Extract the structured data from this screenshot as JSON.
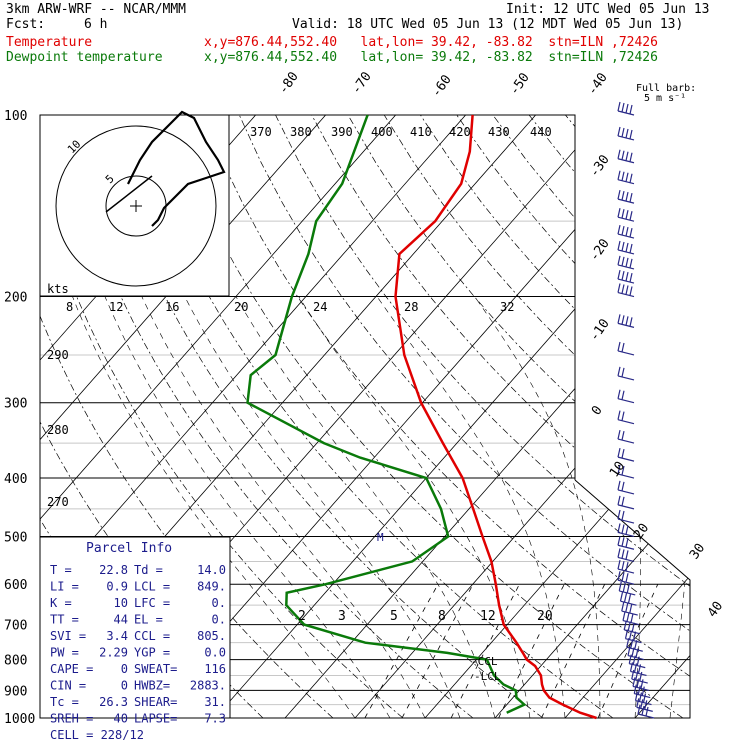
{
  "header": {
    "model": "3km ARW-WRF -- NCAR/MMM",
    "init": "Init: 12 UTC Wed 05 Jun 13",
    "fcst_label": "Fcst:",
    "fcst_value": "6 h",
    "valid": "Valid: 18 UTC Wed 05 Jun 13 (12 MDT Wed 05 Jun 13)",
    "temp_label": "Temperature",
    "dew_label": "Dewpoint temperature",
    "temp_loc": "x,y=876.44,552.40   lat,lon= 39.42, -83.82  stn=ILN ,72426",
    "dew_loc": "x,y=876.44,552.40   lat,lon= 39.42, -83.82  stn=ILN ,72426",
    "barb_note_1": "Full barb:",
    "barb_note_2": "5 m s⁻¹"
  },
  "parcel": {
    "title": "Parcel Info",
    "rows": [
      [
        "T  =",
        "22.8",
        "Td =",
        "14.0"
      ],
      [
        "LI =",
        "0.9",
        "LCL =",
        "849."
      ],
      [
        "K  =",
        "10",
        "LFC =",
        "0."
      ],
      [
        "TT =",
        "44",
        "EL  =",
        "0."
      ],
      [
        "SVI =",
        "3.4",
        "CCL =",
        "805."
      ],
      [
        "PW =",
        "2.29",
        "YGP =",
        "0.0"
      ],
      [
        "CAPE =",
        "0",
        "SWEAT=",
        "116"
      ],
      [
        "CIN =",
        "0",
        "HWBZ=",
        "2883."
      ],
      [
        "Tc =",
        "26.3",
        "SHEAR=",
        "31."
      ],
      [
        "SREH =",
        "40",
        "LAPSE=",
        "7.3"
      ]
    ],
    "cell": "CELL = 228/12"
  },
  "hodograph": {
    "units": "kts",
    "ring_labels": [
      "5",
      "10"
    ],
    "speed_ticks": [
      "8",
      "12",
      "16",
      "20",
      "24",
      "28",
      "32"
    ],
    "u": [
      1,
      2,
      3,
      5,
      7,
      10,
      13,
      12,
      10,
      9,
      8,
      6,
      4,
      1,
      -1,
      -3
    ],
    "v": [
      -2,
      -1,
      1,
      3,
      5,
      6,
      7,
      9,
      12,
      14,
      16,
      17,
      15,
      12,
      9,
      5
    ]
  },
  "chart_data": {
    "type": "line",
    "title": "Skew-T log-p sounding",
    "pressure_levels": [
      "100",
      "200",
      "300",
      "400",
      "500",
      "600",
      "700",
      "800",
      "900",
      "1000"
    ],
    "isotherm_labels": [
      "-80",
      "-70",
      "-60",
      "-50",
      "-40",
      "-30",
      "-20",
      "-10",
      "0",
      "10",
      "20",
      "30",
      "40"
    ],
    "theta_labels": [
      "370",
      "380",
      "390",
      "400",
      "410",
      "420",
      "430",
      "440"
    ],
    "theta_side_labels": [
      "290",
      "280",
      "270"
    ],
    "mixing_ratio_labels": [
      "2",
      "3",
      "5",
      "8",
      "12",
      "20"
    ],
    "lcl_label": "-LCL",
    "ccl_label": "-CCL",
    "series": [
      {
        "name": "Temperature",
        "color": "#e00000",
        "p": [
          1000,
          980,
          950,
          925,
          900,
          880,
          850,
          820,
          800,
          780,
          750,
          700,
          650,
          600,
          550,
          500,
          450,
          400,
          350,
          300,
          250,
          200,
          170,
          150,
          130,
          115,
          100
        ],
        "t": [
          24.5,
          21.5,
          18.0,
          15.2,
          13.5,
          12.5,
          11.2,
          9.2,
          7.2,
          5.8,
          3.6,
          -0.5,
          -3.6,
          -6.7,
          -10.2,
          -14.6,
          -19.4,
          -24.8,
          -32.0,
          -40.2,
          -48.6,
          -57.2,
          -62.0,
          -61.0,
          -62.0,
          -64.8,
          -69.0
        ]
      },
      {
        "name": "Dewpoint temperature",
        "color": "#0a7a0a",
        "p": [
          980,
          950,
          925,
          900,
          880,
          850,
          800,
          780,
          750,
          700,
          650,
          620,
          600,
          550,
          500,
          450,
          400,
          370,
          350,
          300,
          270,
          250,
          200,
          170,
          150,
          130,
          100
        ],
        "t": [
          11.0,
          12.5,
          10.5,
          9.5,
          7.0,
          4.5,
          1.5,
          -5.0,
          -18.0,
          -29.0,
          -34.0,
          -35.5,
          -31.0,
          -21.5,
          -19.5,
          -24.0,
          -30.0,
          -42.0,
          -49.0,
          -65.0,
          -68.0,
          -67.0,
          -72.0,
          -75.0,
          -78.0,
          -79.0,
          -84.0
        ]
      }
    ],
    "wind_barb_pressures": [
      1000,
      975,
      950,
      925,
      900,
      875,
      850,
      825,
      800,
      775,
      750,
      725,
      700,
      675,
      650,
      625,
      600,
      575,
      550,
      525,
      500,
      475,
      450,
      425,
      400,
      375,
      350,
      325,
      300,
      275,
      250,
      225,
      200,
      190,
      180,
      170,
      160,
      150,
      140,
      130,
      120,
      110,
      100
    ],
    "barb_color": "#2a2a88"
  }
}
